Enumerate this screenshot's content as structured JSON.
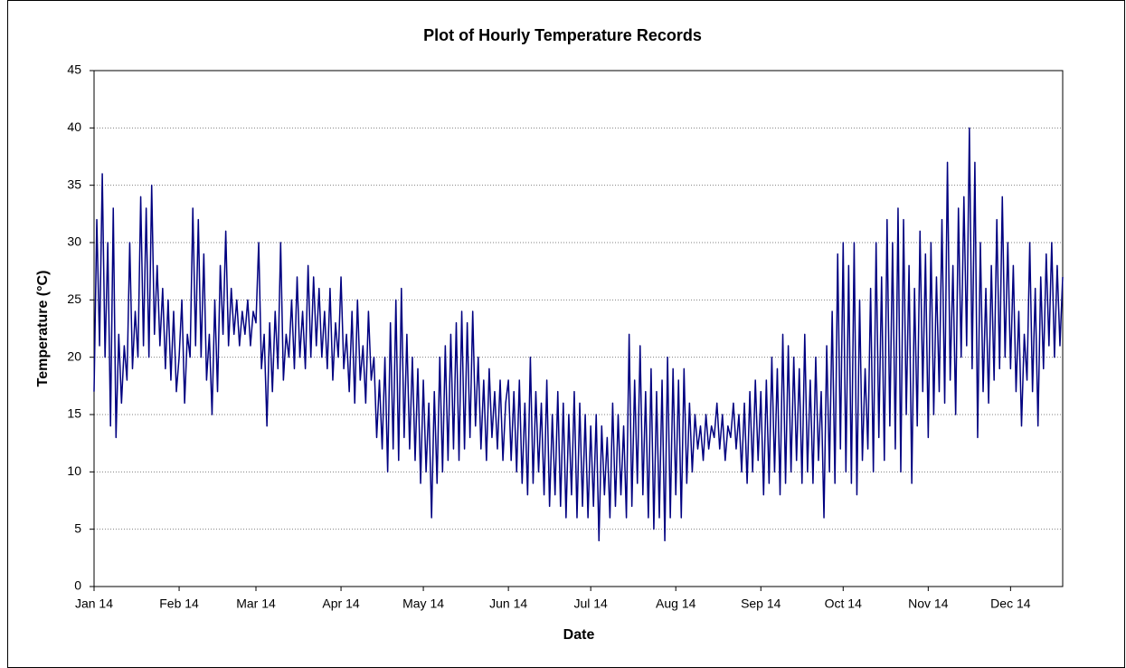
{
  "chart_data": {
    "type": "line",
    "title": "Plot of Hourly Temperature Records",
    "xlabel": "Date",
    "ylabel": "Temperature (°C)",
    "x": [
      0,
      1,
      2,
      3,
      4,
      5,
      6,
      7,
      8,
      9,
      10,
      11,
      12,
      13,
      14,
      15,
      16,
      17,
      18,
      19,
      20,
      21,
      22,
      23,
      24,
      25,
      26,
      27,
      28,
      29,
      30,
      31,
      32,
      33,
      34,
      35,
      36,
      37,
      38,
      39,
      40,
      41,
      42,
      43,
      44,
      45,
      46,
      47,
      48,
      49,
      50,
      51,
      52,
      53,
      54,
      55,
      56,
      57,
      58,
      59,
      60,
      61,
      62,
      63,
      64,
      65,
      66,
      67,
      68,
      69,
      70,
      71,
      72,
      73,
      74,
      75,
      76,
      77,
      78,
      79,
      80,
      81,
      82,
      83,
      84,
      85,
      86,
      87,
      88,
      89,
      90,
      91,
      92,
      93,
      94,
      95,
      96,
      97,
      98,
      99,
      100,
      101,
      102,
      103,
      104,
      105,
      106,
      107,
      108,
      109,
      110,
      111,
      112,
      113,
      114,
      115,
      116,
      117,
      118,
      119,
      120,
      121,
      122,
      123,
      124,
      125,
      126,
      127,
      128,
      129,
      130,
      131,
      132,
      133,
      134,
      135,
      136,
      137,
      138,
      139,
      140,
      141,
      142,
      143,
      144,
      145,
      146,
      147,
      148,
      149,
      150,
      151,
      152,
      153,
      154,
      155,
      156,
      157,
      158,
      159,
      160,
      161,
      162,
      163,
      164,
      165,
      166,
      167,
      168,
      169,
      170,
      171,
      172,
      173,
      174,
      175,
      176,
      177,
      178,
      179,
      180,
      181,
      182,
      183,
      184,
      185,
      186,
      187,
      188,
      189,
      190,
      191,
      192,
      193,
      194,
      195,
      196,
      197,
      198,
      199,
      200,
      201,
      202,
      203,
      204,
      205,
      206,
      207,
      208,
      209,
      210,
      211,
      212,
      213,
      214,
      215,
      216,
      217,
      218,
      219,
      220,
      221,
      222,
      223,
      224,
      225,
      226,
      227,
      228,
      229,
      230,
      231,
      232,
      233,
      234,
      235,
      236,
      237,
      238,
      239,
      240,
      241,
      242,
      243,
      244,
      245,
      246,
      247,
      248,
      249,
      250,
      251,
      252,
      253,
      254,
      255,
      256,
      257,
      258,
      259,
      260,
      261,
      262,
      263,
      264,
      265,
      266,
      267,
      268,
      269,
      270,
      271,
      272,
      273,
      274,
      275,
      276,
      277,
      278,
      279,
      280,
      281,
      282,
      283,
      284,
      285,
      286,
      287,
      288,
      289,
      290,
      291,
      292,
      293,
      294,
      295,
      296,
      297,
      298,
      299,
      300,
      301,
      302,
      303,
      304,
      305,
      306,
      307,
      308,
      309,
      310,
      311,
      312,
      313,
      314,
      315,
      316,
      317,
      318,
      319,
      320,
      321,
      322,
      323,
      324,
      325,
      326,
      327,
      328,
      329,
      330,
      331,
      332,
      333,
      334,
      335,
      336,
      337,
      338,
      339,
      340,
      341,
      342,
      343,
      344,
      345,
      346,
      347,
      348,
      349,
      350,
      351,
      352,
      353
    ],
    "series": [
      {
        "color": "#000080",
        "values": [
          17,
          32,
          21,
          36,
          20,
          30,
          14,
          33,
          13,
          22,
          16,
          21,
          18,
          30,
          19,
          24,
          20,
          34,
          21,
          33,
          20,
          35,
          22,
          28,
          21,
          26,
          19,
          25,
          18,
          24,
          17,
          20,
          25,
          16,
          22,
          20,
          33,
          21,
          32,
          20,
          29,
          18,
          22,
          15,
          25,
          17,
          28,
          22,
          31,
          21,
          26,
          22,
          25,
          21,
          24,
          22,
          25,
          21,
          24,
          23,
          30,
          19,
          22,
          14,
          23,
          17,
          24,
          19,
          30,
          18,
          22,
          20,
          25,
          19,
          27,
          20,
          24,
          19,
          28,
          20,
          27,
          21,
          26,
          20,
          24,
          19,
          26,
          18,
          23,
          20,
          27,
          19,
          22,
          17,
          24,
          16,
          25,
          18,
          21,
          16,
          24,
          18,
          20,
          13,
          18,
          12,
          20,
          10,
          23,
          12,
          25,
          11,
          26,
          13,
          22,
          12,
          20,
          11,
          19,
          9,
          18,
          10,
          16,
          6,
          17,
          9,
          20,
          10,
          21,
          11,
          22,
          12,
          23,
          11,
          24,
          12,
          23,
          13,
          24,
          14,
          20,
          12,
          18,
          11,
          19,
          13,
          17,
          12,
          18,
          11,
          16,
          18,
          11,
          17,
          10,
          18,
          9,
          16,
          8,
          20,
          9,
          17,
          10,
          16,
          8,
          18,
          7,
          15,
          8,
          17,
          7,
          16,
          6,
          15,
          8,
          17,
          6,
          16,
          7,
          15,
          6,
          14,
          7,
          15,
          4,
          14,
          8,
          13,
          6,
          16,
          7,
          15,
          8,
          14,
          6,
          22,
          7,
          18,
          9,
          21,
          8,
          17,
          6,
          19,
          5,
          17,
          6,
          18,
          4,
          20,
          6,
          19,
          8,
          18,
          6,
          19,
          9,
          16,
          10,
          15,
          12,
          14,
          11,
          15,
          12,
          14,
          13,
          16,
          12,
          15,
          11,
          14,
          13,
          16,
          12,
          15,
          10,
          16,
          9,
          17,
          10,
          18,
          11,
          17,
          8,
          18,
          9,
          20,
          10,
          19,
          8,
          22,
          9,
          21,
          10,
          20,
          11,
          19,
          9,
          22,
          10,
          18,
          9,
          20,
          11,
          17,
          6,
          21,
          10,
          24,
          9,
          29,
          12,
          30,
          10,
          28,
          9,
          30,
          8,
          25,
          11,
          19,
          12,
          26,
          10,
          30,
          13,
          27,
          11,
          32,
          14,
          30,
          12,
          33,
          10,
          32,
          15,
          28,
          9,
          26,
          14,
          31,
          17,
          29,
          13,
          30,
          15,
          27,
          17,
          32,
          16,
          37,
          18,
          28,
          15,
          33,
          20,
          34,
          21,
          40,
          19,
          37,
          13,
          30,
          17,
          26,
          16,
          28,
          18,
          32,
          19,
          34,
          20,
          30,
          19,
          28,
          17,
          24,
          14,
          22,
          18,
          30,
          17,
          26,
          14,
          27,
          19,
          29,
          21,
          30,
          20,
          28,
          21,
          27
        ]
      }
    ],
    "xlim": [
      0,
      353
    ],
    "xticks": [
      {
        "value": 0,
        "label": "Jan 14"
      },
      {
        "value": 31,
        "label": "Feb 14"
      },
      {
        "value": 59,
        "label": "Mar 14"
      },
      {
        "value": 90,
        "label": "Apr 14"
      },
      {
        "value": 120,
        "label": "May 14"
      },
      {
        "value": 151,
        "label": "Jun 14"
      },
      {
        "value": 181,
        "label": "Jul 14"
      },
      {
        "value": 212,
        "label": "Aug 14"
      },
      {
        "value": 243,
        "label": "Sep 14"
      },
      {
        "value": 273,
        "label": "Oct 14"
      },
      {
        "value": 304,
        "label": "Nov 14"
      },
      {
        "value": 334,
        "label": "Dec 14"
      }
    ],
    "ylim": [
      0,
      45
    ],
    "yticks": [
      0,
      5,
      10,
      15,
      20,
      25,
      30,
      35,
      40,
      45
    ],
    "grid": true
  }
}
